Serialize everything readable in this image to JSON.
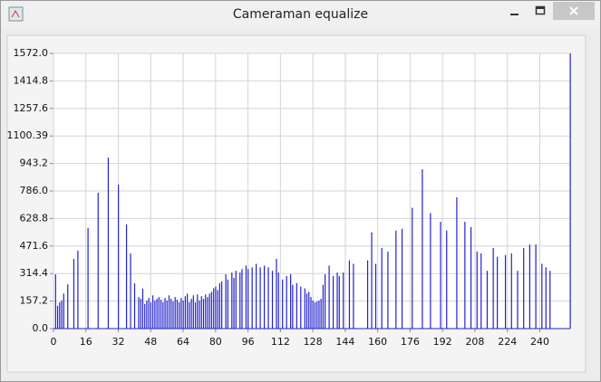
{
  "window": {
    "title": "Cameraman equalize"
  },
  "chart_data": {
    "type": "bar",
    "color": "#2222cc",
    "grid": true,
    "x": [
      1,
      2,
      3,
      4,
      5,
      7,
      10,
      12,
      17,
      22,
      27,
      32,
      36,
      38,
      40,
      42,
      43,
      44,
      45,
      46,
      47,
      48,
      49,
      50,
      51,
      52,
      53,
      54,
      55,
      56,
      57,
      58,
      59,
      60,
      61,
      62,
      63,
      64,
      65,
      66,
      67,
      68,
      69,
      70,
      71,
      72,
      73,
      74,
      75,
      76,
      77,
      78,
      79,
      80,
      81,
      82,
      83,
      85,
      86,
      88,
      89,
      90,
      92,
      93,
      95,
      96,
      98,
      100,
      102,
      104,
      106,
      108,
      110,
      111,
      113,
      115,
      117,
      118,
      120,
      122,
      124,
      125,
      126,
      127,
      128,
      129,
      130,
      131,
      132,
      133,
      134,
      136,
      138,
      140,
      141,
      143,
      146,
      148,
      155,
      157,
      159,
      162,
      165,
      169,
      172,
      177,
      182,
      186,
      191,
      194,
      199,
      203,
      206,
      209,
      211,
      214,
      217,
      219,
      223,
      226,
      229,
      232,
      235,
      238,
      241,
      243,
      245,
      255
    ],
    "values": [
      310,
      130,
      150,
      160,
      200,
      253,
      398,
      445,
      574,
      776,
      977,
      822,
      595,
      429,
      259,
      180,
      170,
      228,
      140,
      160,
      175,
      150,
      190,
      160,
      170,
      180,
      165,
      150,
      175,
      160,
      190,
      170,
      155,
      180,
      165,
      150,
      175,
      160,
      185,
      200,
      150,
      170,
      190,
      150,
      195,
      160,
      185,
      170,
      195,
      180,
      200,
      210,
      230,
      240,
      220,
      260,
      270,
      310,
      280,
      320,
      290,
      330,
      320,
      340,
      360,
      340,
      350,
      370,
      350,
      360,
      350,
      330,
      398,
      320,
      280,
      300,
      310,
      250,
      260,
      240,
      230,
      200,
      210,
      180,
      160,
      150,
      155,
      160,
      170,
      250,
      310,
      360,
      300,
      320,
      300,
      320,
      390,
      370,
      390,
      550,
      370,
      460,
      440,
      560,
      570,
      690,
      910,
      660,
      610,
      560,
      750,
      610,
      580,
      440,
      430,
      330,
      460,
      410,
      420,
      430,
      330,
      460,
      480,
      480,
      370,
      350,
      330,
      1572
    ],
    "xlim": [
      0,
      255
    ],
    "xticks": [
      0,
      16,
      32,
      48,
      64,
      80,
      96,
      112,
      128,
      144,
      160,
      176,
      192,
      208,
      224,
      240
    ],
    "ylim": [
      0,
      1572
    ],
    "yticks": [
      {
        "value": 0,
        "label": "0.0"
      },
      157.2,
      314.4,
      471.6,
      628.8,
      {
        "value": 786,
        "label": "786.0"
      },
      943.2,
      1100.39,
      1257.6,
      1414.8,
      {
        "value": 1572,
        "label": "1572.0"
      }
    ]
  }
}
